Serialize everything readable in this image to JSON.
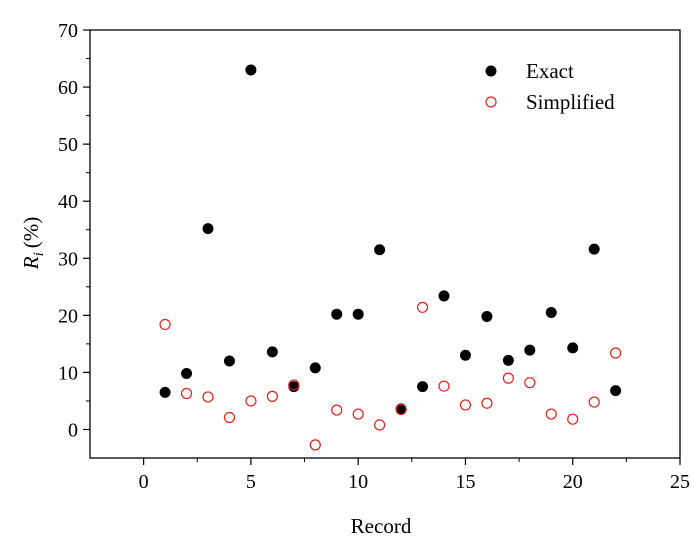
{
  "chart_data": {
    "type": "scatter",
    "title": "",
    "xlabel": "Record",
    "ylabel_main": "R",
    "ylabel_sub": "i",
    "ylabel_unit": "(%)",
    "xlim": [
      -2.5,
      25
    ],
    "ylim": [
      -5,
      70
    ],
    "xticks": [
      0,
      5,
      10,
      15,
      20,
      25
    ],
    "yticks": [
      0,
      10,
      20,
      30,
      40,
      50,
      60,
      70
    ],
    "grid": false,
    "legend_position": "top-right",
    "series": [
      {
        "name": "Exact",
        "marker": "filled-circle",
        "color": "#000000",
        "x": [
          1,
          2,
          3,
          4,
          5,
          6,
          7,
          8,
          9,
          10,
          11,
          12,
          13,
          14,
          15,
          16,
          17,
          18,
          19,
          20,
          21,
          22
        ],
        "y": [
          6.5,
          9.8,
          35.2,
          12.0,
          63.0,
          13.6,
          7.5,
          10.8,
          20.2,
          20.2,
          31.5,
          3.6,
          7.5,
          23.4,
          13.0,
          19.8,
          12.1,
          13.9,
          20.5,
          14.3,
          31.6,
          6.8
        ]
      },
      {
        "name": "Simplified",
        "marker": "open-circle",
        "color": "#e0201a",
        "x": [
          1,
          2,
          3,
          4,
          5,
          6,
          7,
          8,
          9,
          10,
          11,
          12,
          13,
          14,
          15,
          16,
          17,
          18,
          19,
          20,
          21,
          22
        ],
        "y": [
          18.4,
          6.3,
          5.7,
          2.1,
          5.0,
          5.8,
          7.8,
          -2.7,
          3.4,
          2.7,
          0.8,
          3.5,
          21.4,
          7.6,
          4.3,
          4.6,
          9.0,
          8.2,
          2.7,
          1.8,
          4.8,
          13.4
        ]
      }
    ]
  }
}
